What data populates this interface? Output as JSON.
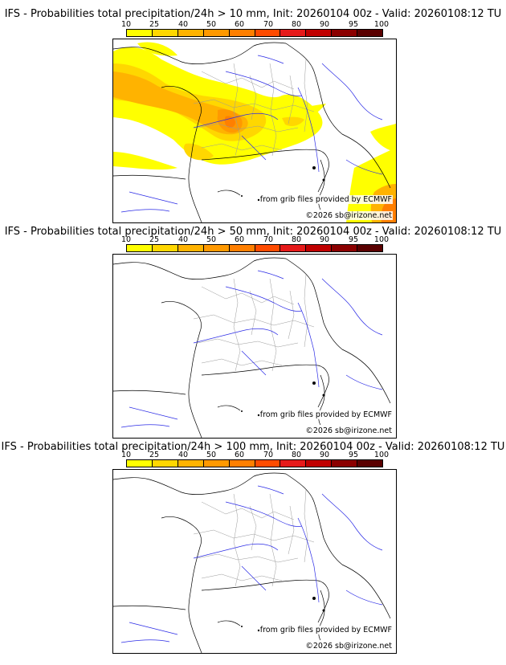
{
  "legend": {
    "ticks": [
      "10",
      "25",
      "40",
      "50",
      "60",
      "70",
      "80",
      "90",
      "95",
      "100"
    ],
    "colors": [
      "#ffff00",
      "#ffd700",
      "#ffb300",
      "#ff9900",
      "#ff7f00",
      "#ff4c00",
      "#e61a1a",
      "#c00000",
      "#8b0000",
      "#5a0000"
    ]
  },
  "panels": [
    {
      "title": "IFS - Probabilities total precipitation/24h > 10 mm, Init: 20260104 00z - Valid: 20260108:12 TU",
      "source": "from grib files provided by ECMWF",
      "copyright": "©2026 sb@irizone.net"
    },
    {
      "title": "IFS - Probabilities total precipitation/24h > 50 mm, Init: 20260104 00z - Valid: 20260108:12 TU",
      "source": "from grib files provided by ECMWF",
      "copyright": "©2026 sb@irizone.net"
    },
    {
      "title": "IFS - Probabilities total precipitation/24h > 100 mm, Init: 20260104 00z - Valid: 20260108:12 TU",
      "source": "from grib files provided by ECMWF",
      "copyright": "©2026 sb@irizone.net"
    }
  ]
}
